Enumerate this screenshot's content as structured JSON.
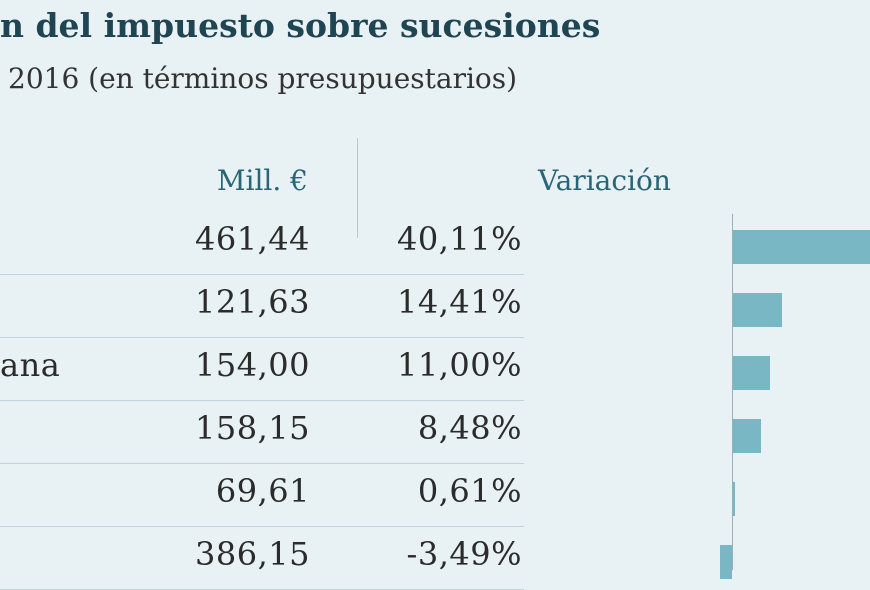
{
  "title": "n del impuesto sobre sucesiones",
  "subtitle": "2016 (en términos presupuestarios)",
  "headers": {
    "mill": "Mill. €",
    "variacion": "Variación"
  },
  "colors": {
    "bar": "#7ab7c4",
    "title": "#1f4452",
    "header": "#2a6478"
  },
  "chart_data": {
    "type": "table",
    "columns": [
      "",
      "Mill. €",
      "",
      "Variación"
    ],
    "rows": [
      {
        "name": "",
        "mill": "461,44",
        "var": "40,11%",
        "value": 40.11
      },
      {
        "name": "",
        "mill": "121,63",
        "var": "14,41%",
        "value": 14.41
      },
      {
        "name": "ana",
        "mill": "154,00",
        "var": "11,00%",
        "value": 11.0
      },
      {
        "name": "",
        "mill": "158,15",
        "var": "8,48%",
        "value": 8.48
      },
      {
        "name": "",
        "mill": "69,61",
        "var": "0,61%",
        "value": 0.61
      },
      {
        "name": "",
        "mill": "386,15",
        "var": "-3,49%",
        "value": -3.49
      }
    ]
  }
}
